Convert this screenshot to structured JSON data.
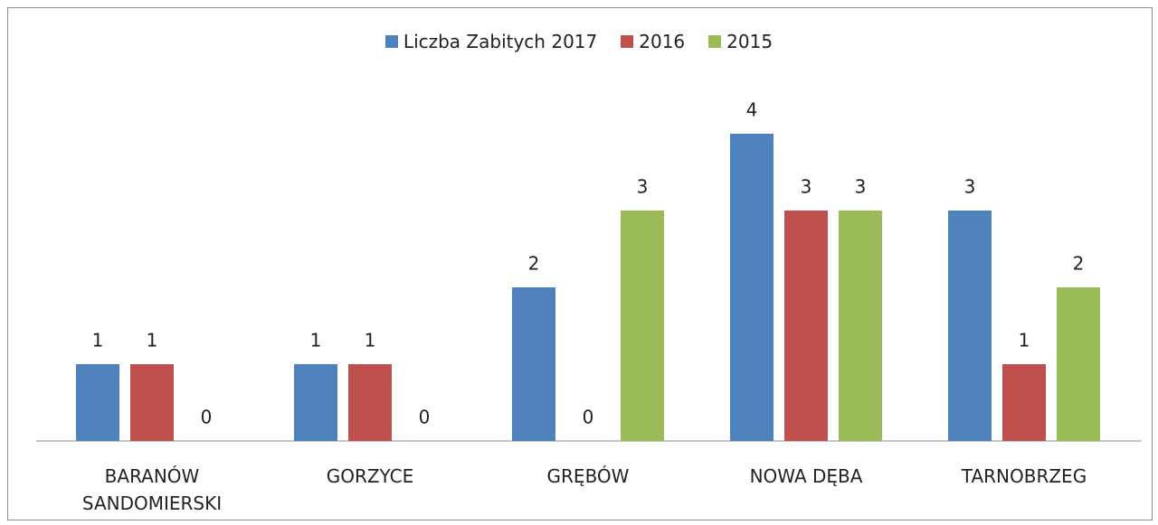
{
  "chart_data": {
    "type": "bar",
    "categories": [
      "BARANÓW SANDOMIERSKI",
      "GORZYCE",
      "GRĘBÓW",
      "NOWA DĘBA",
      "TARNOBRZEG"
    ],
    "series": [
      {
        "name": "Liczba Zabitych 2017",
        "color": "#4f81bd",
        "values": [
          1,
          1,
          2,
          4,
          3
        ]
      },
      {
        "name": "2016",
        "color": "#c0504d",
        "values": [
          1,
          1,
          0,
          3,
          1
        ]
      },
      {
        "name": "2015",
        "color": "#9bbb59",
        "values": [
          0,
          0,
          3,
          3,
          2
        ]
      }
    ],
    "legend": "top"
  }
}
